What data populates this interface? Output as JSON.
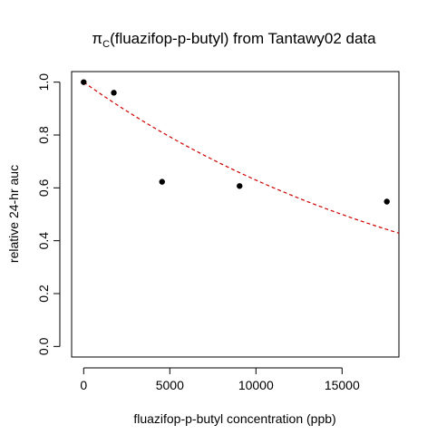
{
  "chart_data": {
    "type": "scatter",
    "title": {
      "symbol": "π",
      "subscript": "C",
      "rest": "(fluazifop-p-butyl) from Tantawy02 data"
    },
    "xlabel": "fluazifop-p-butyl concentration (ppb)",
    "ylabel": "relative 24-hr auc",
    "xlim": [
      -700,
      18300
    ],
    "ylim": [
      -0.04,
      1.04
    ],
    "xticks": [
      0,
      5000,
      10000,
      15000
    ],
    "yticks": [
      0.0,
      0.2,
      0.4,
      0.6,
      0.8,
      1.0
    ],
    "xtick_labels": [
      "0",
      "5000",
      "10000",
      "15000"
    ],
    "ytick_labels": [
      "0.0",
      "0.2",
      "0.4",
      "0.6",
      "0.8",
      "1.0"
    ],
    "grid": false,
    "series": [
      {
        "kind": "points",
        "color": "#000000",
        "x": [
          0,
          1750,
          4550,
          9050,
          17600
        ],
        "y": [
          1.0,
          0.96,
          0.623,
          0.607,
          0.548
        ]
      },
      {
        "kind": "fit-curve",
        "color": "#cc0000",
        "line_style": "dashed",
        "model": "exponential decay",
        "y0": 1.0,
        "rate_per_ppb": 4.63e-05
      }
    ]
  }
}
